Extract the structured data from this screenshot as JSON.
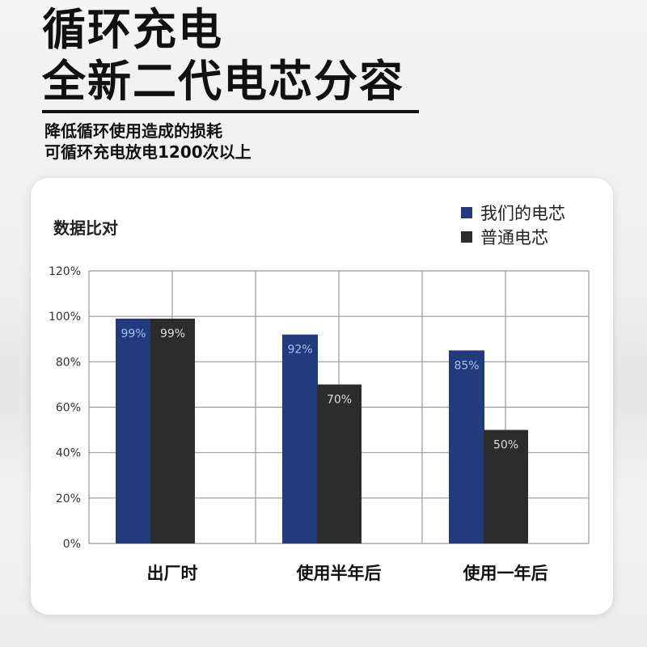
{
  "header": {
    "title_line1": "循环充电",
    "title_line2": "全新二代电芯分容",
    "subtitle_line1": "降低循环使用造成的损耗",
    "subtitle_line2": "可循环充电放电1200次以上"
  },
  "chart_data": {
    "type": "bar",
    "title": "数据比对",
    "categories": [
      "出厂时",
      "使用半年后",
      "使用一年后"
    ],
    "series": [
      {
        "name": "我们的电芯",
        "values": [
          99,
          92,
          85
        ],
        "color": "#223a7e",
        "labels": [
          "99%",
          "92%",
          "85%"
        ],
        "label_color": "#9ec3f0"
      },
      {
        "name": "普通电芯",
        "values": [
          99,
          70,
          50
        ],
        "color": "#2c2c2c",
        "labels": [
          "99%",
          "70%",
          "50%"
        ],
        "label_color": "#dddddd"
      }
    ],
    "yticks": [
      "0%",
      "20%",
      "40%",
      "60%",
      "80%",
      "100%",
      "120%"
    ],
    "ylim": [
      0,
      120
    ],
    "grid": true,
    "legend_position": "top-right"
  },
  "colors": {
    "series_primary": "#223a7e",
    "series_secondary": "#2c2c2c",
    "grid": "#999999"
  }
}
